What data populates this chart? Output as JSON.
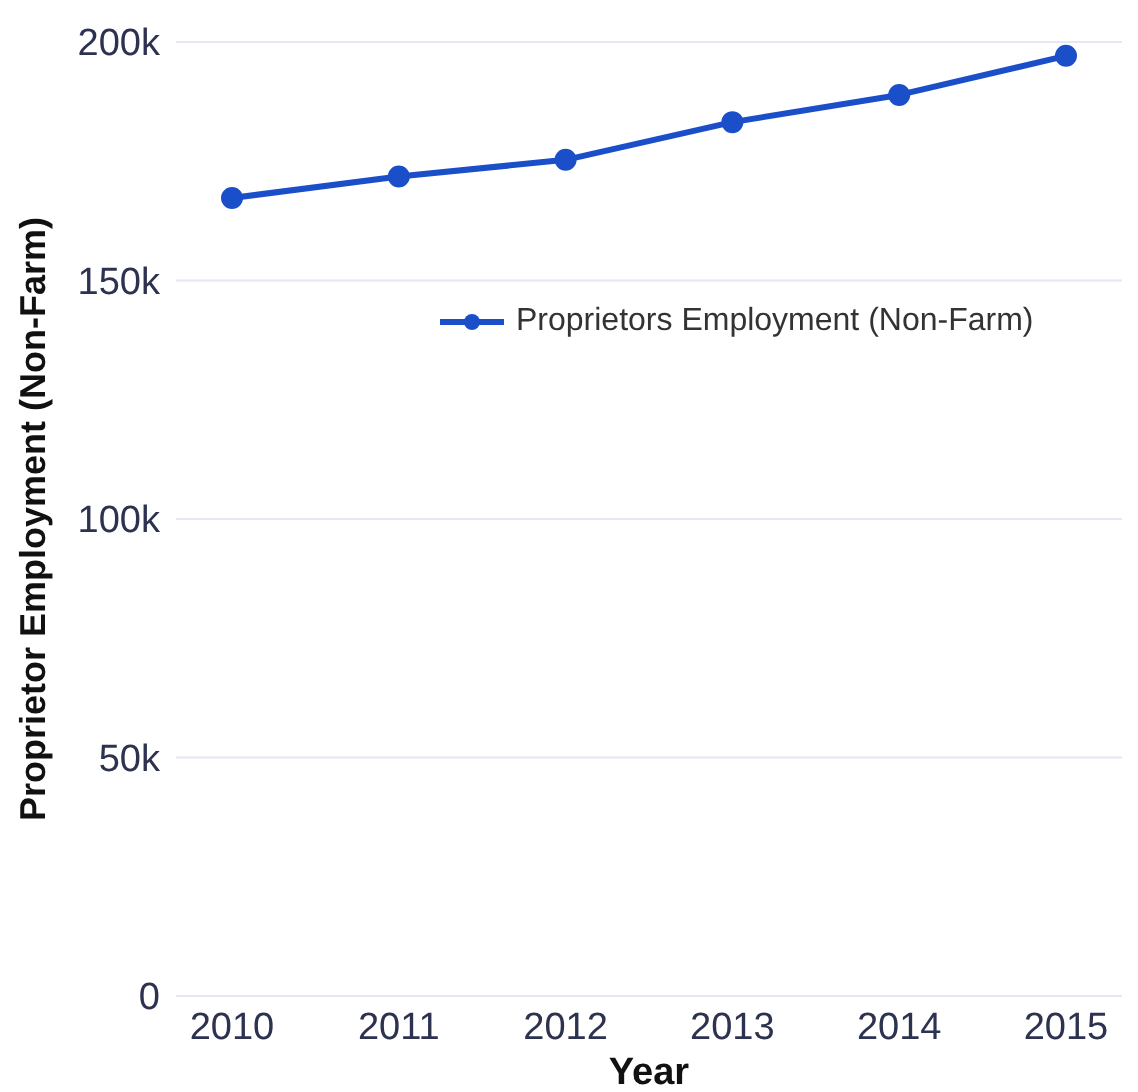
{
  "chart_data": {
    "type": "line",
    "xlabel": "Year",
    "ylabel": "Proprietor Employment (Non-Farm)",
    "categories": [
      "2010",
      "2011",
      "2012",
      "2013",
      "2014",
      "2015"
    ],
    "series": [
      {
        "name": "Proprietors Employment (Non-Farm)",
        "color": "#1a4fc9",
        "values": [
          167300,
          171800,
          175300,
          183200,
          188900,
          197100
        ]
      }
    ],
    "ylim": [
      0,
      200000
    ],
    "yticks": [
      {
        "value": 0,
        "label": "0"
      },
      {
        "value": 50000,
        "label": "50k"
      },
      {
        "value": 100000,
        "label": "100k"
      },
      {
        "value": 150000,
        "label": "150k"
      },
      {
        "value": 200000,
        "label": "200k"
      }
    ],
    "grid": "y",
    "legend": "right",
    "marker": "circle",
    "line_style": "solid"
  }
}
